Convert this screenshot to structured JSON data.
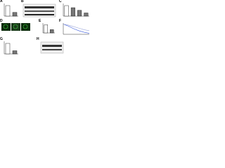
{
  "panels": [
    {
      "label": "A",
      "type": "bar",
      "values": [
        1,
        0.35
      ],
      "ylim": [
        0,
        1.2
      ]
    },
    {
      "label": "B"
    },
    {
      "label": "C",
      "type": "bar",
      "values": [
        1,
        0.8,
        0.55,
        0.3
      ],
      "ylim": [
        0,
        1.2
      ]
    },
    {
      "label": "D"
    },
    {
      "label": "E",
      "type": "bar",
      "values": [
        1,
        0.4
      ],
      "ylim": [
        0,
        1.2
      ]
    },
    {
      "label": "F",
      "type": "line",
      "x": [
        0,
        1,
        2,
        3,
        4,
        5
      ],
      "series": [
        {
          "color": "#3b5bdb",
          "values": [
            1,
            0.8,
            0.55,
            0.35,
            0.2,
            0.1
          ]
        },
        {
          "color": "#9aa5d8",
          "values": [
            1,
            0.9,
            0.75,
            0.6,
            0.45,
            0.35
          ]
        }
      ],
      "ylim": [
        0,
        1.1
      ]
    },
    {
      "label": "G",
      "type": "bar",
      "values": [
        1,
        0.3
      ],
      "ylim": [
        0,
        1.2
      ]
    },
    {
      "label": "H"
    }
  ]
}
